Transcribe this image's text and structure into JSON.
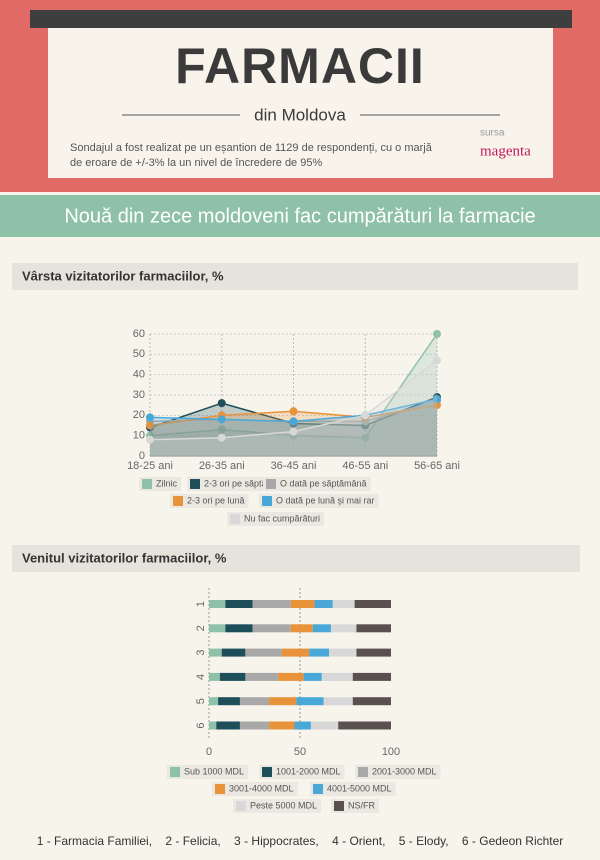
{
  "header": {
    "title": "FARMACII",
    "subtitle": "din Moldova",
    "description": [
      "Sondajul a fost realizat pe un eșantion de 1129 de respondenți, cu o marjă",
      "de eroare de +/-3% la un nivel de încredere de 95%"
    ],
    "source_label": "sursa",
    "source": "magenta"
  },
  "banner": "Nouă din zece moldoveni fac cumpărături la farmacie",
  "chart_data": [
    {
      "type": "line",
      "title": "Vârsta vizitatorilor farmaciilor, %",
      "categories": [
        "18-25 ani",
        "26-35 ani",
        "36-45 ani",
        "46-55 ani",
        "56-65 ani"
      ],
      "ylim": [
        0,
        60
      ],
      "yticks": [
        0,
        10,
        20,
        30,
        40,
        50,
        60
      ],
      "grid": true,
      "legend": "bottom",
      "series": [
        {
          "name": "Zilnic",
          "color": "#8fc1a9",
          "values": [
            10,
            13,
            10,
            9,
            60
          ]
        },
        {
          "name": "2-3 ori pe săptămână",
          "color": "#1d4e5a",
          "values": [
            14,
            26,
            16,
            15,
            29
          ]
        },
        {
          "name": "O dată pe săptămână",
          "color": "#a8a8a8",
          "values": [
            17,
            18,
            17,
            17,
            27
          ]
        },
        {
          "name": "2-3 ori pe lună",
          "color": "#e8923a",
          "values": [
            15,
            20,
            22,
            19,
            25
          ]
        },
        {
          "name": "O dată pe lună și mai rar",
          "color": "#4aa8d8",
          "values": [
            19,
            18,
            17,
            20,
            28
          ]
        },
        {
          "name": "Nu fac cumpărături",
          "color": "#d8d8d8",
          "values": [
            8,
            9,
            12,
            20,
            47
          ]
        }
      ]
    },
    {
      "type": "bar",
      "orientation": "horizontal",
      "stacked": true,
      "title": "Venitul vizitatorilor farmaciilor, %",
      "categories": [
        "1",
        "2",
        "3",
        "4",
        "5",
        "6"
      ],
      "xlim": [
        0,
        100
      ],
      "xticks": [
        0,
        50,
        100
      ],
      "grid": true,
      "legend": "bottom",
      "series": [
        {
          "name": "Sub 1000 MDL",
          "color": "#8fc1a9",
          "values": [
            9,
            9,
            7,
            6,
            5,
            4
          ]
        },
        {
          "name": "1001-2000 MDL",
          "color": "#1d4e5a",
          "values": [
            15,
            15,
            13,
            14,
            12,
            13
          ]
        },
        {
          "name": "2001-3000 MDL",
          "color": "#a8a8a8",
          "values": [
            21,
            21,
            20,
            18,
            16,
            16
          ]
        },
        {
          "name": "3001-4000 MDL",
          "color": "#e8923a",
          "values": [
            13,
            12,
            15,
            14,
            15,
            14
          ]
        },
        {
          "name": "4001-5000 MDL",
          "color": "#4aa8d8",
          "values": [
            10,
            10,
            11,
            10,
            15,
            9
          ]
        },
        {
          "name": "Peste 5000 MDL",
          "color": "#d8d8d8",
          "values": [
            12,
            14,
            15,
            17,
            16,
            15
          ]
        },
        {
          "name": "NS/FR",
          "color": "#5a5050",
          "values": [
            20,
            19,
            19,
            21,
            21,
            29
          ]
        }
      ]
    }
  ],
  "footer": "1 - Farmacia Familiei,    2 - Felicia,    3 - Hippocrates,    4 - Orient,    5 - Elody,    6 - Gedeon Richter"
}
